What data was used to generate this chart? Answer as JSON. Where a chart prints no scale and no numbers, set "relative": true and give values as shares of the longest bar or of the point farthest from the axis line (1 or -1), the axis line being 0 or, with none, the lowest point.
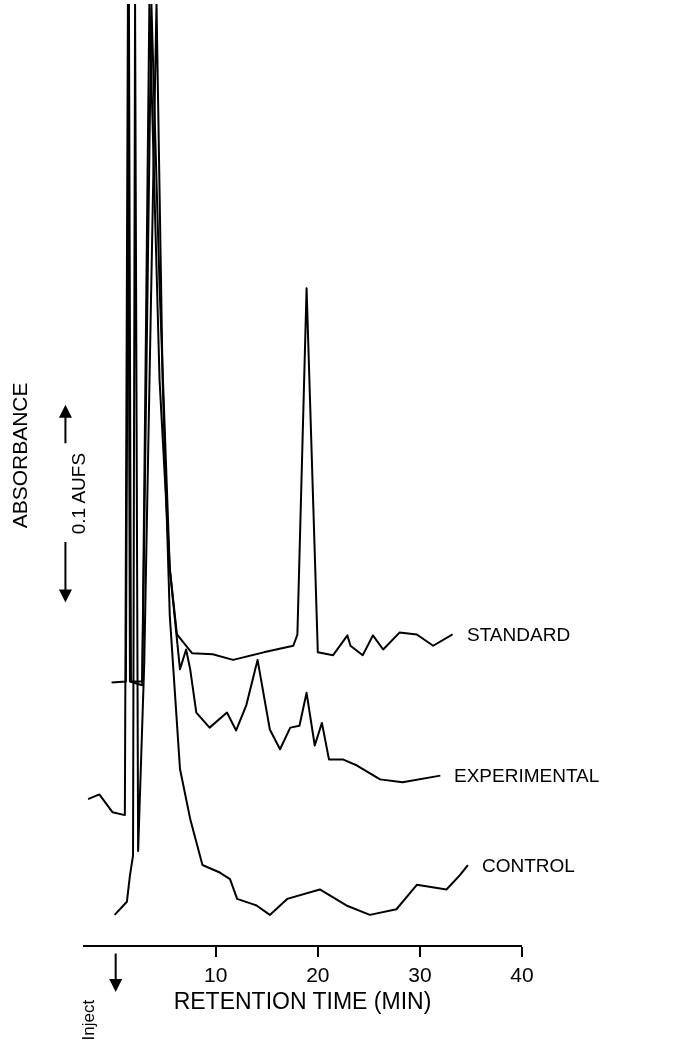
{
  "chart_data": {
    "type": "line",
    "relative": true,
    "xlabel": "RETENTION TIME (MIN)",
    "ylabel": "ABSORBANCE",
    "annotations": [
      "0.1 AUFS",
      "Inject"
    ],
    "xlim": [
      -3,
      40
    ],
    "xticks": [
      10,
      20,
      30,
      40
    ],
    "legend": false,
    "marker": "none",
    "line_style": "solid",
    "series": [
      {
        "name": "STANDARD",
        "color": "#000000",
        "x": [
          -0.2,
          1.2,
          1.5,
          1.7,
          2.8,
          3.7,
          4.5,
          5.5,
          6.2,
          7.7,
          9.7,
          11.7,
          14.7,
          17.6,
          18.0,
          18.9,
          20.0,
          21.5,
          22.9,
          23.2,
          24.4,
          25.4,
          26.4,
          28.0,
          29.7,
          31.3,
          33.2
        ],
        "values": [
          0.279,
          0.28,
          1.0,
          0.28,
          0.28,
          1.0,
          0.7,
          0.4,
          0.33,
          0.31,
          0.309,
          0.303,
          0.311,
          0.318,
          0.33,
          0.698,
          0.311,
          0.308,
          0.329,
          0.318,
          0.308,
          0.329,
          0.314,
          0.332,
          0.33,
          0.318,
          0.33
        ]
      },
      {
        "name": "EXPERIMENTAL",
        "color": "#000000",
        "x": [
          -2.5,
          -1.4,
          -0.1,
          1.1,
          1.4,
          1.6,
          2.8,
          3.5,
          4.5,
          5.5,
          6.5,
          7.1,
          7.5,
          8.1,
          9.4,
          11.1,
          12.0,
          13.0,
          14.1,
          15.3,
          16.3,
          17.3,
          18.2,
          18.9,
          19.7,
          20.4,
          21.1,
          22.5,
          23.8,
          26.1,
          28.3,
          32.0
        ],
        "values": [
          0.155,
          0.16,
          0.141,
          0.138,
          1.0,
          0.28,
          0.276,
          1.0,
          0.6,
          0.4,
          0.293,
          0.314,
          0.293,
          0.247,
          0.231,
          0.247,
          0.228,
          0.255,
          0.303,
          0.229,
          0.208,
          0.231,
          0.233,
          0.268,
          0.212,
          0.236,
          0.197,
          0.197,
          0.191,
          0.176,
          0.173,
          0.18
        ]
      },
      {
        "name": "CONTROL",
        "color": "#000000",
        "x": [
          0.1,
          1.3,
          1.6,
          1.9,
          2.1,
          2.4,
          3.0,
          4.2,
          4.8,
          5.5,
          6.5,
          7.5,
          8.7,
          10.4,
          11.4,
          12.1,
          14.0,
          15.3,
          17.0,
          20.2,
          22.8,
          25.1,
          27.7,
          29.7,
          32.6,
          33.9,
          34.7
        ],
        "values": [
          0.032,
          0.046,
          0.074,
          0.095,
          1.0,
          0.1,
          0.3,
          1.0,
          0.6,
          0.35,
          0.187,
          0.134,
          0.085,
          0.077,
          0.07,
          0.049,
          0.042,
          0.032,
          0.049,
          0.059,
          0.042,
          0.032,
          0.038,
          0.064,
          0.059,
          0.074,
          0.085
        ]
      }
    ]
  }
}
